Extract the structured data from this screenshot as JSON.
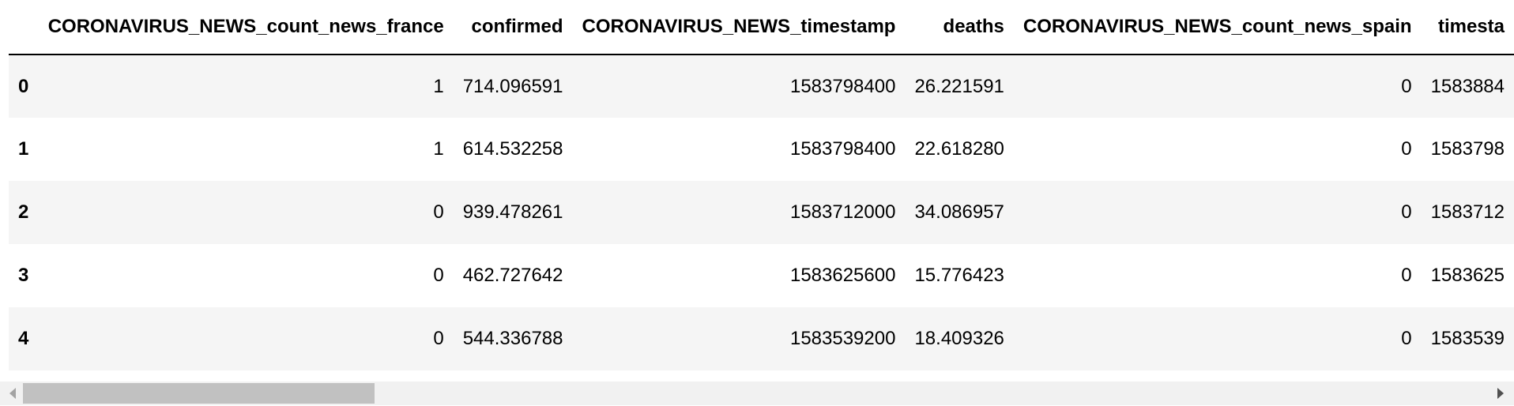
{
  "table": {
    "index_header": "",
    "columns": [
      "CORONAVIRUS_NEWS_count_news_france",
      "confirmed",
      "CORONAVIRUS_NEWS_timestamp",
      "deaths",
      "CORONAVIRUS_NEWS_count_news_spain",
      "timesta"
    ],
    "rows": [
      {
        "index": "0",
        "cells": [
          "1",
          "714.096591",
          "1583798400",
          "26.221591",
          "0",
          "1583884"
        ]
      },
      {
        "index": "1",
        "cells": [
          "1",
          "614.532258",
          "1583798400",
          "22.618280",
          "0",
          "1583798"
        ]
      },
      {
        "index": "2",
        "cells": [
          "0",
          "939.478261",
          "1583712000",
          "34.086957",
          "0",
          "1583712"
        ]
      },
      {
        "index": "3",
        "cells": [
          "0",
          "462.727642",
          "1583625600",
          "15.776423",
          "0",
          "1583625"
        ]
      },
      {
        "index": "4",
        "cells": [
          "0",
          "544.336788",
          "1583539200",
          "18.409326",
          "0",
          "1583539"
        ]
      }
    ]
  },
  "scrollbar": {
    "position_fraction": 0.0,
    "visible_fraction": 0.24,
    "left_arrow_icon": "triangle-left-icon",
    "right_arrow_icon": "triangle-right-icon",
    "thumb_color": "#c1c1c1",
    "track_color": "#f1f1f1"
  },
  "colors": {
    "row_odd": "#f5f5f5",
    "row_even": "#ffffff",
    "header_rule": "#000000"
  }
}
